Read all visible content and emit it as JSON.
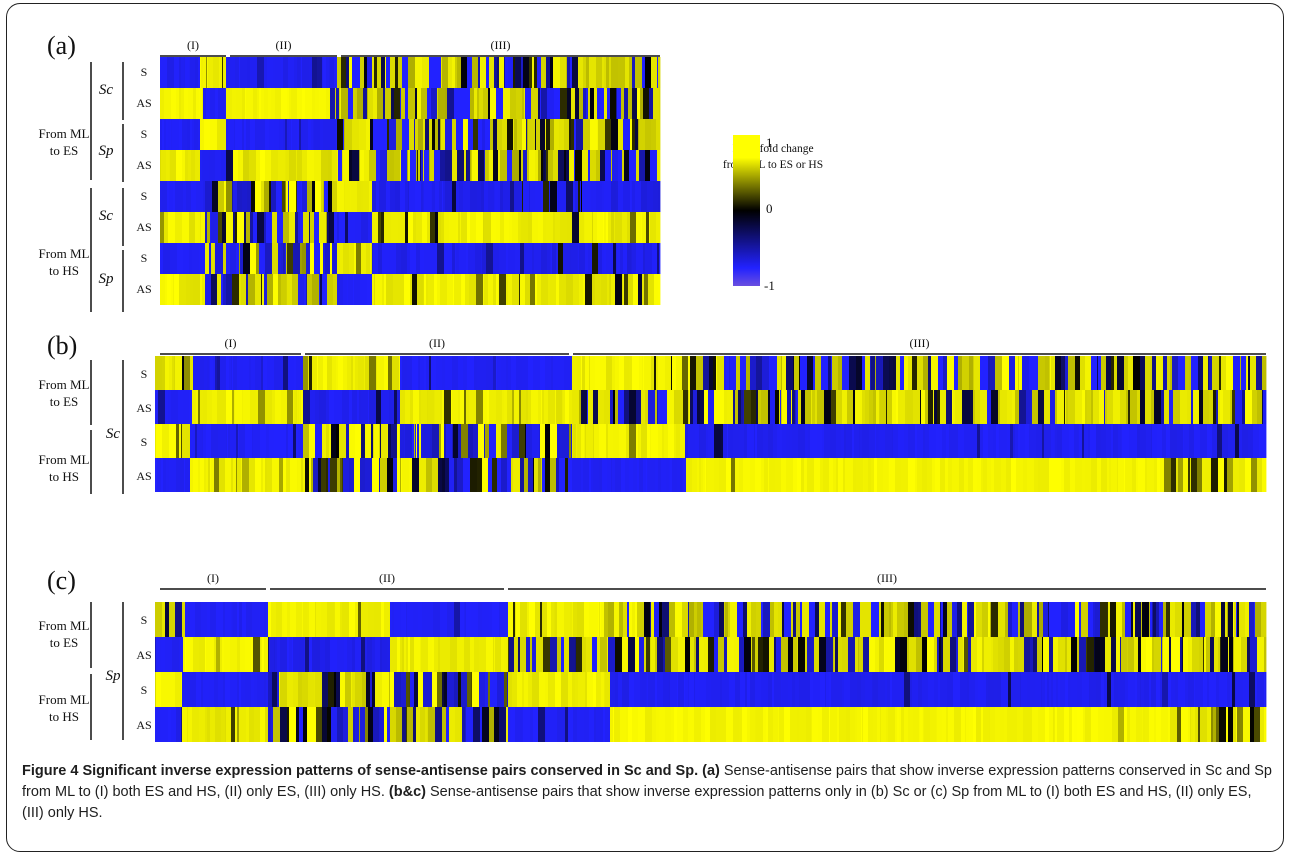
{
  "panels": [
    {
      "label": "(a)",
      "sections": [
        "(I)",
        "(II)",
        "(III)"
      ],
      "groups": [
        {
          "condition": "From ML to ES",
          "organisms": [
            "Sc",
            "Sp"
          ]
        },
        {
          "condition": "From ML to HS",
          "organisms": [
            "Sc",
            "Sp"
          ]
        }
      ],
      "row_labels": [
        "S",
        "AS"
      ]
    },
    {
      "label": "(b)",
      "sections": [
        "(I)",
        "(II)",
        "(III)"
      ],
      "groups": [
        {
          "condition": "From ML to ES",
          "organisms": [
            "Sc"
          ]
        },
        {
          "condition": "From ML to HS",
          "organisms": []
        }
      ],
      "row_labels": [
        "S",
        "AS"
      ]
    },
    {
      "label": "(c)",
      "sections": [
        "(I)",
        "(II)",
        "(III)"
      ],
      "groups": [
        {
          "condition": "From ML to ES",
          "organisms": [
            "Sp"
          ]
        },
        {
          "condition": "From ML to HS",
          "organisms": []
        }
      ],
      "row_labels": [
        "S",
        "AS"
      ]
    }
  ],
  "legend": {
    "title_line1": "Log2 fold change",
    "title_line2": "from ML to ES or HS",
    "ticks": [
      "1",
      "0",
      "-1"
    ]
  },
  "colors": {
    "high": "#ffff00",
    "mid": "#000000",
    "low": "#2222ff"
  },
  "caption": {
    "figure_label": "Figure 4",
    "title": "Significant inverse expression patterns of sense-antisense pairs conserved in Sc and Sp.",
    "text_a": "Sense-antisense pairs that show inverse expression patterns conserved in Sc and Sp from ML to (I) both ES and HS, (II) only ES, (III) only HS.",
    "text_bc": "Sense-antisense pairs that show inverse expression patterns only in (b) Sc or (c) Sp from ML to (I) both ES and HS, (II) only ES, (III) only HS."
  }
}
